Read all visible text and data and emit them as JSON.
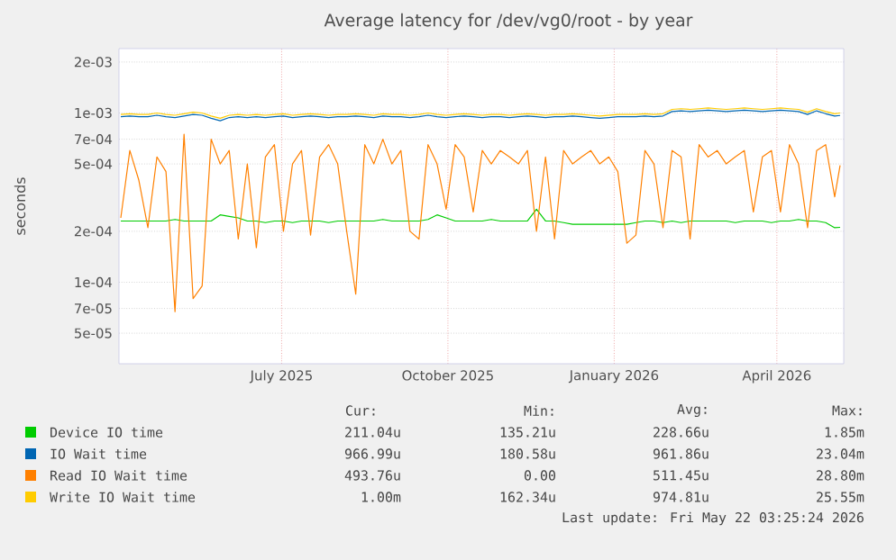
{
  "chart_data": {
    "type": "line",
    "title": "Average latency for /dev/vg0/root - by year",
    "ylabel": "seconds",
    "log": "y",
    "grid": true,
    "legend": "bottom",
    "marker": "none",
    "line_style": "solid",
    "xlim": [
      "2025-04-17",
      "2026-05-23"
    ],
    "ylim": [
      3.3e-05,
      0.0024
    ],
    "xticks": [
      {
        "value": "2025-07-16",
        "label": "July 2025"
      },
      {
        "value": "2025-10-16",
        "label": "October 2025"
      },
      {
        "value": "2026-01-16",
        "label": "January 2026"
      },
      {
        "value": "2026-04-16",
        "label": "April 2026"
      }
    ],
    "yticks": [
      {
        "value": 5e-05,
        "label": "5e-05"
      },
      {
        "value": 7e-05,
        "label": "7e-05"
      },
      {
        "value": 0.0001,
        "label": "1e-04"
      },
      {
        "value": 0.0002,
        "label": "2e-04"
      },
      {
        "value": 0.0005,
        "label": "5e-04"
      },
      {
        "value": 0.0007,
        "label": "7e-04"
      },
      {
        "value": 0.001,
        "label": "1e-03"
      },
      {
        "value": 0.002,
        "label": "2e-03"
      }
    ],
    "x": [
      "2025-04-18",
      "2025-04-23",
      "2025-04-28",
      "2025-05-03",
      "2025-05-08",
      "2025-05-13",
      "2025-05-18",
      "2025-05-23",
      "2025-05-28",
      "2025-06-02",
      "2025-06-07",
      "2025-06-12",
      "2025-06-17",
      "2025-06-22",
      "2025-06-27",
      "2025-07-02",
      "2025-07-07",
      "2025-07-12",
      "2025-07-17",
      "2025-07-22",
      "2025-07-27",
      "2025-08-01",
      "2025-08-06",
      "2025-08-11",
      "2025-08-16",
      "2025-08-21",
      "2025-08-26",
      "2025-08-31",
      "2025-09-05",
      "2025-09-10",
      "2025-09-15",
      "2025-09-20",
      "2025-09-25",
      "2025-09-30",
      "2025-10-05",
      "2025-10-10",
      "2025-10-15",
      "2025-10-20",
      "2025-10-25",
      "2025-10-30",
      "2025-11-04",
      "2025-11-09",
      "2025-11-14",
      "2025-11-19",
      "2025-11-24",
      "2025-11-29",
      "2025-12-04",
      "2025-12-09",
      "2025-12-14",
      "2025-12-19",
      "2025-12-24",
      "2025-12-29",
      "2026-01-03",
      "2026-01-08",
      "2026-01-13",
      "2026-01-18",
      "2026-01-23",
      "2026-01-28",
      "2026-02-02",
      "2026-02-07",
      "2026-02-12",
      "2026-02-17",
      "2026-02-22",
      "2026-02-27",
      "2026-03-04",
      "2026-03-09",
      "2026-03-14",
      "2026-03-19",
      "2026-03-24",
      "2026-03-29",
      "2026-04-03",
      "2026-04-08",
      "2026-04-13",
      "2026-04-18",
      "2026-04-23",
      "2026-04-28",
      "2026-05-03",
      "2026-05-08",
      "2026-05-13",
      "2026-05-18",
      "2026-05-21"
    ],
    "series": [
      {
        "name": "Device IO time",
        "color": "#00cc00",
        "values": [
          0.00023,
          0.00023,
          0.00023,
          0.00023,
          0.00023,
          0.00023,
          0.000235,
          0.00023,
          0.00023,
          0.00023,
          0.00023,
          0.00025,
          0.000245,
          0.00024,
          0.00023,
          0.00023,
          0.000225,
          0.00023,
          0.00023,
          0.000225,
          0.00023,
          0.00023,
          0.00023,
          0.000225,
          0.00023,
          0.00023,
          0.00023,
          0.00023,
          0.00023,
          0.000235,
          0.00023,
          0.00023,
          0.00023,
          0.00023,
          0.000235,
          0.00025,
          0.00024,
          0.00023,
          0.00023,
          0.00023,
          0.00023,
          0.000235,
          0.00023,
          0.00023,
          0.00023,
          0.00023,
          0.00027,
          0.00023,
          0.00023,
          0.000225,
          0.00022,
          0.00022,
          0.00022,
          0.00022,
          0.00022,
          0.00022,
          0.00022,
          0.000225,
          0.00023,
          0.00023,
          0.000225,
          0.00023,
          0.000225,
          0.00023,
          0.00023,
          0.00023,
          0.00023,
          0.00023,
          0.000225,
          0.00023,
          0.00023,
          0.00023,
          0.000225,
          0.00023,
          0.00023,
          0.000235,
          0.00023,
          0.00023,
          0.000225,
          0.00021,
          0.000211
        ]
      },
      {
        "name": "IO Wait time",
        "color": "#0066b3",
        "values": [
          0.00095,
          0.00096,
          0.00095,
          0.00095,
          0.00097,
          0.00095,
          0.00094,
          0.00096,
          0.00098,
          0.00097,
          0.00093,
          0.0009,
          0.00094,
          0.00095,
          0.00094,
          0.00095,
          0.00094,
          0.00095,
          0.00096,
          0.00094,
          0.00095,
          0.00096,
          0.00095,
          0.00094,
          0.00095,
          0.00095,
          0.00096,
          0.00095,
          0.00094,
          0.00096,
          0.00095,
          0.00095,
          0.00094,
          0.00095,
          0.00097,
          0.00095,
          0.00094,
          0.00095,
          0.00096,
          0.00095,
          0.00094,
          0.00095,
          0.00095,
          0.00094,
          0.00095,
          0.00096,
          0.00095,
          0.00094,
          0.00095,
          0.00095,
          0.00096,
          0.00095,
          0.00094,
          0.00093,
          0.00094,
          0.00095,
          0.00095,
          0.00095,
          0.00096,
          0.00095,
          0.00096,
          0.00102,
          0.00103,
          0.00102,
          0.00103,
          0.00104,
          0.00103,
          0.00102,
          0.00103,
          0.00104,
          0.00103,
          0.00102,
          0.00103,
          0.00104,
          0.00103,
          0.00102,
          0.00098,
          0.00103,
          0.00099,
          0.00096,
          0.000967
        ]
      },
      {
        "name": "Read IO Wait time",
        "color": "#ff8000",
        "values": [
          0.00024,
          0.0006,
          0.0004,
          0.00021,
          0.00055,
          0.00045,
          6.7e-05,
          0.00075,
          8e-05,
          9.5e-05,
          0.0007,
          0.0005,
          0.0006,
          0.00018,
          0.0005,
          0.00016,
          0.00055,
          0.00065,
          0.0002,
          0.0005,
          0.0006,
          0.00019,
          0.00055,
          0.00065,
          0.0005,
          0.0002,
          8.5e-05,
          0.00065,
          0.0005,
          0.0007,
          0.0005,
          0.0006,
          0.0002,
          0.00018,
          0.00065,
          0.0005,
          0.00027,
          0.00065,
          0.00055,
          0.00026,
          0.0006,
          0.0005,
          0.0006,
          0.00055,
          0.0005,
          0.0006,
          0.0002,
          0.00055,
          0.00018,
          0.0006,
          0.0005,
          0.00055,
          0.0006,
          0.0005,
          0.00055,
          0.00045,
          0.00017,
          0.00019,
          0.0006,
          0.0005,
          0.00021,
          0.0006,
          0.00055,
          0.00018,
          0.00065,
          0.00055,
          0.0006,
          0.0005,
          0.00055,
          0.0006,
          0.00026,
          0.00055,
          0.0006,
          0.00026,
          0.00065,
          0.0005,
          0.00021,
          0.0006,
          0.00065,
          0.00032,
          0.00049
        ]
      },
      {
        "name": "Write IO Wait time",
        "color": "#ffcc00",
        "values": [
          0.00098,
          0.00099,
          0.00098,
          0.00098,
          0.001,
          0.00098,
          0.00097,
          0.00099,
          0.00101,
          0.001,
          0.00096,
          0.00093,
          0.00097,
          0.00098,
          0.00097,
          0.00098,
          0.00097,
          0.00098,
          0.00099,
          0.00097,
          0.00098,
          0.00099,
          0.00098,
          0.00097,
          0.00098,
          0.00098,
          0.00099,
          0.00098,
          0.00097,
          0.00099,
          0.00098,
          0.00098,
          0.00097,
          0.00098,
          0.001,
          0.00098,
          0.00097,
          0.00098,
          0.00099,
          0.00098,
          0.00097,
          0.00098,
          0.00098,
          0.00097,
          0.00098,
          0.00099,
          0.00098,
          0.00097,
          0.00098,
          0.00098,
          0.00099,
          0.00098,
          0.00097,
          0.00096,
          0.00097,
          0.00098,
          0.00098,
          0.00098,
          0.00099,
          0.00098,
          0.00099,
          0.00105,
          0.00106,
          0.00105,
          0.00106,
          0.00107,
          0.00106,
          0.00105,
          0.00106,
          0.00107,
          0.00106,
          0.00105,
          0.00106,
          0.00107,
          0.00106,
          0.00105,
          0.00101,
          0.00106,
          0.00102,
          0.00099,
          0.001
        ]
      }
    ],
    "annotations": [
      "Cur:",
      "Min:",
      "Avg:",
      "Max:",
      "211.04u",
      "135.21u",
      "228.66u",
      "1.85m",
      "966.99u",
      "180.58u",
      "961.86u",
      "23.04m",
      "493.76u",
      "0.00",
      "511.45u",
      "28.80m",
      "1.00m",
      "162.34u",
      "974.81u",
      "25.55m",
      "Last update: Fri May 22 03:25:24 2026"
    ]
  }
}
